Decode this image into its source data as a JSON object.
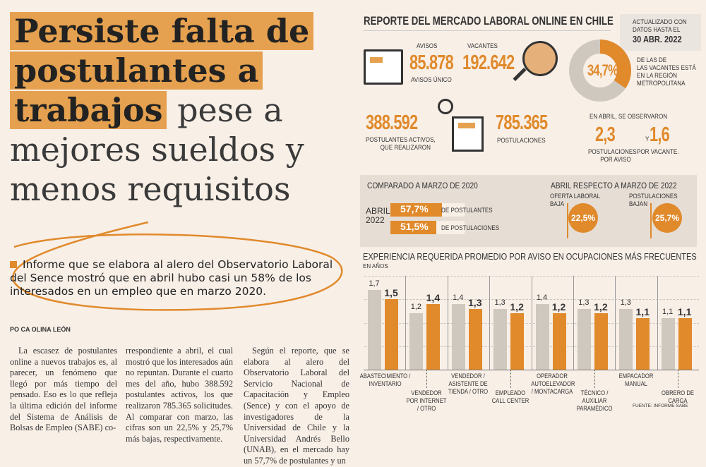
{
  "headline": {
    "highlighted": [
      "Persiste falta de",
      "postulantes a",
      "trabajos"
    ],
    "rest": [
      "pese a",
      "mejores sueldos y",
      "menos requisitos"
    ]
  },
  "lede": "Informe que se elabora al alero del Observatorio Laboral del Sence mostró que en abril hubo casi un 58% de los interesados en un empleo que en marzo 2020.",
  "byline": "PO  CA OLINA LEÓN",
  "columns": [
    "La escasez de postulantes online a nuevos trabajos es, al parecer, un fenómeno que llegó por más tiempo del pensado. Eso es lo que refleja la última edición del informe del Sistema de Análisis de Bolsas de Empleo (SABE) co-",
    "rrespondiente a abril, el cual mostró que los interesados aún no repuntan. Durante el cuarto mes del año, hubo 388.592 postulantes activos, los que realizaron 785.365 solicitudes. Al comparar con marzo, las cifras son un 22,5% y 25,7% más bajas, respectivamente.",
    "Según el reporte, que se elabora al alero del Observatorio Laboral del Servicio Nacional de Capacitación y Empleo (Sence) y con el apoyo de investigadores de la Universidad de Chile y la Universidad Andrés Bello (UNAB), en el mercado hay un 57,7% de postulantes y un"
  ],
  "info": {
    "title": "REPORTE DEL MERCADO LABORAL ONLINE EN CHILE",
    "updated": {
      "line1": "ACTUALIZADO CON",
      "line2": "DATOS HASTA EL",
      "date": "30 ABR. 2022"
    },
    "avisos": {
      "label": "AVISOS",
      "value": "85.878",
      "sub": "AVISOS ÚNICO"
    },
    "vacantes": {
      "label": "VACANTES",
      "value": "192.642"
    },
    "rm": {
      "value": "34,7%",
      "share": 34.7,
      "text": [
        "DE LAS DE",
        "LAS VACANTES ESTÁ",
        "EN LA REGIÓN",
        "METROPOLITANA"
      ]
    },
    "postulantes": {
      "value": "388.592",
      "sub": [
        "POSTULANTES ACTIVOS,",
        "QUE REALIZARON"
      ]
    },
    "postulaciones": {
      "value": "785.365",
      "sub": "POSTULACIONES"
    },
    "abril": {
      "intro": "EN ABRIL, SE OBSERVARON",
      "v1": "2,3",
      "l1": [
        "POSTULACIONES",
        "POR AVISO"
      ],
      "y": "Y",
      "v2": "1,6",
      "l2": "POR VACANTE."
    },
    "compare2020": {
      "title": "COMPARADO A MARZO DE 2020",
      "label": [
        "ABRIL",
        "2022"
      ],
      "rows": [
        {
          "value": "57,7%",
          "pct": 57.7,
          "text": "DE POSTULANTES"
        },
        {
          "value": "51,5%",
          "pct": 51.5,
          "text": "DE POSTULACIONES"
        }
      ]
    },
    "compare2022": {
      "title": "ABRIL RESPECTO A MARZO DE 2022",
      "items": [
        {
          "label": [
            "OFERTA LABORAL",
            "BAJA"
          ],
          "value": "22,5%"
        },
        {
          "label": [
            "POSTULACIONES",
            "BAJAN"
          ],
          "value": "25,7%"
        }
      ]
    },
    "colors": {
      "orange": "#e08a2c",
      "gray": "#cfc8bf",
      "bg": "#f8efe7"
    }
  },
  "chart_data": {
    "type": "bar",
    "title": "EXPERIENCIA REQUERIDA PROMEDIO POR AVISO EN OCUPACIONES MÁS FRECUENTES",
    "subtitle": "EN AÑOS",
    "categories": [
      "ABASTECIMIENTO / INVENTARIO",
      "VENDEDOR POR INTERNET / OTRO",
      "VENDEDOR / ASISTENTE DE TIENDA / OTRO",
      "EMPLEADO CALL CENTER",
      "OPERADOR AUTOELEVADOR / MONTACARGA",
      "TÉCNICO / AUXILIAR PARAMÉDICO",
      "EMPACADOR MANUAL",
      "OBRERO DE CARGA"
    ],
    "series": [
      {
        "color": "#cfc8bf",
        "values": [
          1.7,
          1.2,
          1.4,
          1.3,
          1.4,
          1.3,
          1.3,
          1.1
        ],
        "labels": [
          "1,7",
          "1,2",
          "1,4",
          "1,3",
          "1,4",
          "1,3",
          "1,3",
          "1,1"
        ]
      },
      {
        "color": "#e08a2c",
        "values": [
          1.5,
          1.4,
          1.3,
          1.2,
          1.2,
          1.2,
          1.1,
          1.1
        ],
        "labels": [
          "1,5",
          "1,4",
          "1,3",
          "1,2",
          "1,2",
          "1,2",
          "1,1",
          "1,1"
        ]
      }
    ],
    "ylim": [
      0,
      2
    ],
    "grid": true,
    "source": "FUENTE: INFORME SABE"
  }
}
